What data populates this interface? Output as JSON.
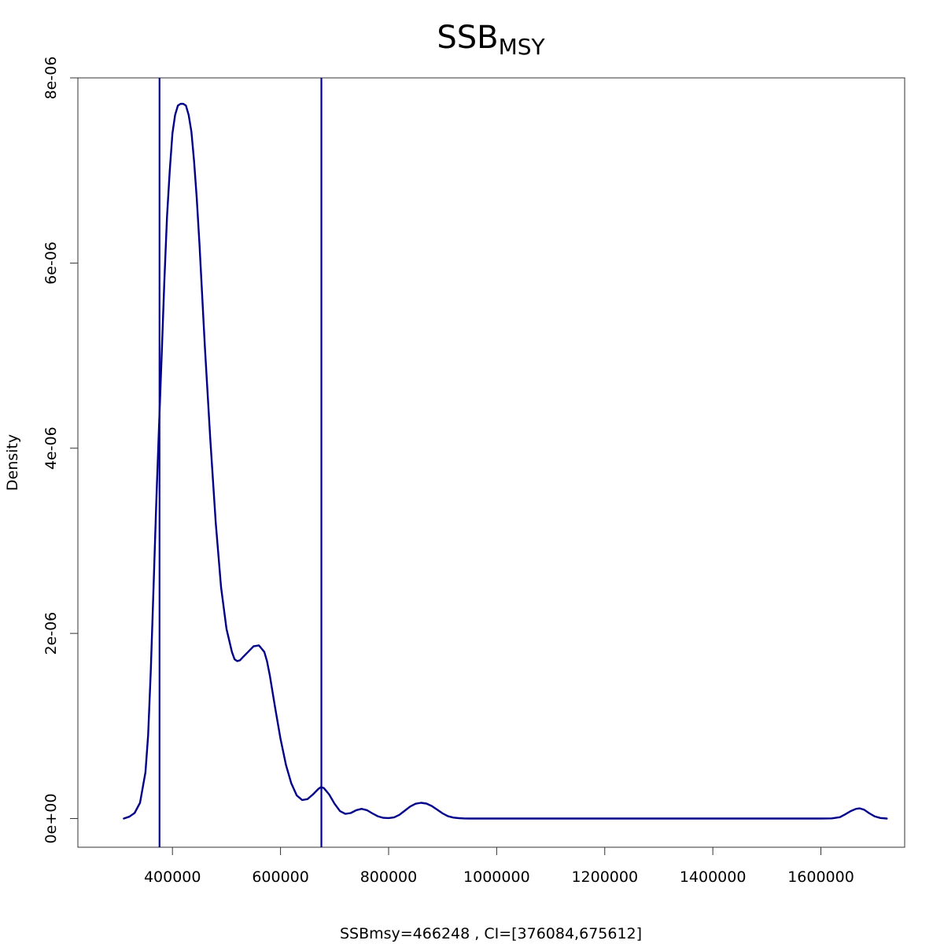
{
  "chart_data": {
    "type": "line",
    "title": "SSB",
    "title_subscript": "MSY",
    "xlabel": "SSBmsy=466248 , CI=[376084,675612]",
    "ylabel": "Density",
    "xlim": [
      225000,
      1755000
    ],
    "ylim": [
      -3.1e-07,
      8e-06
    ],
    "x_ticks": [
      400000,
      600000,
      800000,
      1000000,
      1200000,
      1400000,
      1600000
    ],
    "x_tick_labels": [
      "400000",
      "600000",
      "800000",
      "1000000",
      "1200000",
      "1400000",
      "1600000"
    ],
    "y_ticks": [
      0,
      2e-06,
      4e-06,
      6e-06,
      8e-06
    ],
    "y_tick_labels": [
      "0e+00",
      "2e-06",
      "4e-06",
      "6e-06",
      "8e-06"
    ],
    "grid": false,
    "line_color": "#00008B",
    "vlines": [
      376084,
      675612
    ],
    "series": [
      {
        "x": [
          310000,
          320000,
          330000,
          340000,
          350000,
          355000,
          360000,
          365000,
          370000,
          375000,
          380000,
          385000,
          390000,
          395000,
          400000,
          405000,
          410000,
          415000,
          420000,
          425000,
          430000,
          435000,
          440000,
          445000,
          450000,
          455000,
          460000,
          470000,
          480000,
          490000,
          500000,
          510000,
          515000,
          520000,
          525000,
          530000,
          540000,
          550000,
          560000,
          570000,
          575000,
          580000,
          590000,
          600000,
          610000,
          620000,
          630000,
          640000,
          650000,
          660000,
          670000,
          675000,
          680000,
          690000,
          700000,
          710000,
          720000,
          730000,
          740000,
          750000,
          760000,
          770000,
          780000,
          790000,
          800000,
          810000,
          820000,
          830000,
          840000,
          850000,
          860000,
          870000,
          880000,
          890000,
          900000,
          910000,
          920000,
          930000,
          940000,
          950000,
          1000000,
          1100000,
          1200000,
          1300000,
          1400000,
          1500000,
          1600000,
          1620000,
          1635000,
          1645000,
          1655000,
          1665000,
          1672000,
          1680000,
          1690000,
          1700000,
          1710000,
          1722000
        ],
        "y": [
          0.0,
          2e-08,
          6e-08,
          1.7e-07,
          5e-07,
          9e-07,
          1.6e-06,
          2.5e-06,
          3.4e-06,
          4.2e-06,
          5e-06,
          5.8e-06,
          6.5e-06,
          7e-06,
          7.4e-06,
          7.6e-06,
          7.7e-06,
          7.72e-06,
          7.72e-06,
          7.7e-06,
          7.6e-06,
          7.42e-06,
          7.1e-06,
          6.7e-06,
          6.2e-06,
          5.65e-06,
          5.1e-06,
          4.1e-06,
          3.2e-06,
          2.5e-06,
          2.05e-06,
          1.8e-06,
          1.72e-06,
          1.7e-06,
          1.71e-06,
          1.74e-06,
          1.8e-06,
          1.86e-06,
          1.87e-06,
          1.8e-06,
          1.7e-06,
          1.55e-06,
          1.2e-06,
          8.6e-07,
          5.8e-07,
          3.8e-07,
          2.5e-07,
          2e-07,
          2.1e-07,
          2.6e-07,
          3.2e-07,
          3.4e-07,
          3.3e-07,
          2.6e-07,
          1.6e-07,
          8e-08,
          5e-08,
          6e-08,
          9e-08,
          1.05e-07,
          9e-08,
          5.5e-08,
          2.5e-08,
          8e-09,
          5e-09,
          1.2e-08,
          4e-08,
          8.5e-08,
          1.3e-07,
          1.6e-07,
          1.7e-07,
          1.62e-07,
          1.35e-07,
          9.5e-08,
          5.5e-08,
          2.5e-08,
          1e-08,
          4e-09,
          1e-09,
          0.0,
          0.0,
          0.0,
          0.0,
          0.0,
          0.0,
          0.0,
          0.0,
          2e-09,
          1.5e-08,
          4.5e-08,
          8e-08,
          1.05e-07,
          1.1e-07,
          9.5e-08,
          5.5e-08,
          2.2e-08,
          6e-09,
          0.0
        ]
      }
    ]
  }
}
